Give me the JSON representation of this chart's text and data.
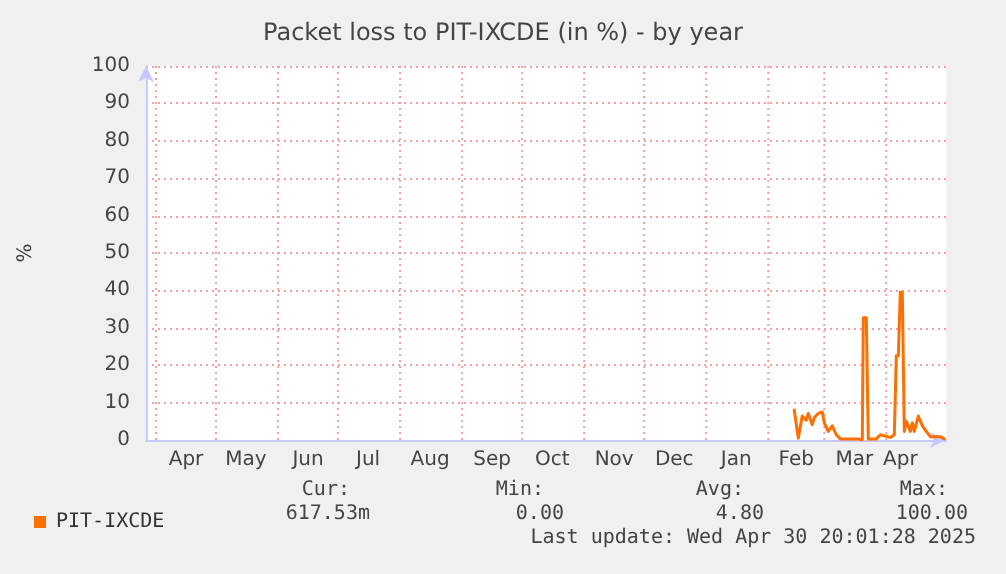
{
  "chart_data": {
    "type": "line",
    "title": "Packet loss to PIT-IXCDE (in %) - by year",
    "ylabel": "%",
    "xlim": [
      "2024-03-27",
      "2025-04-30T20:00"
    ],
    "xticks": [
      {
        "value": "2024-04-01",
        "label": null
      },
      {
        "value": "2024-05-01",
        "label": null
      },
      {
        "value": "2024-06-01",
        "label": null
      },
      {
        "value": "2024-07-01",
        "label": null
      },
      {
        "value": "2024-08-01",
        "label": null
      },
      {
        "value": "2024-09-01",
        "label": null
      },
      {
        "value": "2024-10-01",
        "label": null
      },
      {
        "value": "2024-11-01",
        "label": null
      },
      {
        "value": "2024-12-01",
        "label": null
      },
      {
        "value": "2025-01-01",
        "label": null
      },
      {
        "value": "2025-02-01",
        "label": null
      },
      {
        "value": "2025-03-01",
        "label": null
      },
      {
        "value": "2025-04-01",
        "label": null
      },
      {
        "value": "2024-04-16",
        "label": "Apr"
      },
      {
        "value": "2024-05-16",
        "label": "May"
      },
      {
        "value": "2024-06-16",
        "label": "Jun"
      },
      {
        "value": "2024-07-16",
        "label": "Jul"
      },
      {
        "value": "2024-08-16",
        "label": "Aug"
      },
      {
        "value": "2024-09-16",
        "label": "Sep"
      },
      {
        "value": "2024-10-16",
        "label": "Oct"
      },
      {
        "value": "2024-11-16",
        "label": "Nov"
      },
      {
        "value": "2024-12-16",
        "label": "Dec"
      },
      {
        "value": "2025-01-16",
        "label": "Jan"
      },
      {
        "value": "2025-02-15",
        "label": "Feb"
      },
      {
        "value": "2025-03-16",
        "label": "Mar"
      },
      {
        "value": "2025-04-08",
        "label": "Apr"
      }
    ],
    "ylim": [
      0,
      100
    ],
    "yticks": [
      0,
      10,
      20,
      30,
      40,
      50,
      60,
      70,
      80,
      90,
      100
    ],
    "grid": true,
    "legend": "bottom left",
    "marker": "none",
    "line_style": "solid",
    "series": [
      {
        "name": "PIT-IXCDE",
        "color": "#ff6f00",
        "x": [
          "2025-02-14",
          "2025-02-16",
          "2025-02-18",
          "2025-02-20",
          "2025-02-21",
          "2025-02-23",
          "2025-02-24",
          "2025-02-26",
          "2025-02-28",
          "2025-03-01",
          "2025-03-03",
          "2025-03-05",
          "2025-03-07",
          "2025-03-09",
          "2025-03-18",
          "2025-03-20",
          "2025-03-20T12:00",
          "2025-03-22",
          "2025-03-23",
          "2025-03-27",
          "2025-03-29",
          "2025-04-03",
          "2025-04-05",
          "2025-04-06",
          "2025-04-07",
          "2025-04-08",
          "2025-04-09",
          "2025-04-10",
          "2025-04-11",
          "2025-04-13",
          "2025-04-14",
          "2025-04-15",
          "2025-04-17",
          "2025-04-19",
          "2025-04-21",
          "2025-04-23",
          "2025-04-28",
          "2025-04-30"
        ],
        "values": [
          8.0,
          0.5,
          6.4,
          5.3,
          7.1,
          4.1,
          6.0,
          7.1,
          7.5,
          4.6,
          2.3,
          3.8,
          1.4,
          0.3,
          0.3,
          0,
          32.7,
          32.7,
          0.3,
          0.3,
          1.4,
          0.7,
          1.4,
          22.5,
          22.5,
          39.5,
          39.5,
          2.3,
          5.0,
          2.3,
          4.6,
          2.3,
          6.4,
          3.8,
          2.3,
          0.9,
          0.9,
          0.3
        ]
      }
    ],
    "annotations": [
      "Cur:",
      "Min:",
      "Avg:",
      "Max:",
      "617.53m",
      "0.00",
      "4.80",
      "100.00",
      "Last update: Wed Apr 30 20:01:28 2025"
    ]
  }
}
